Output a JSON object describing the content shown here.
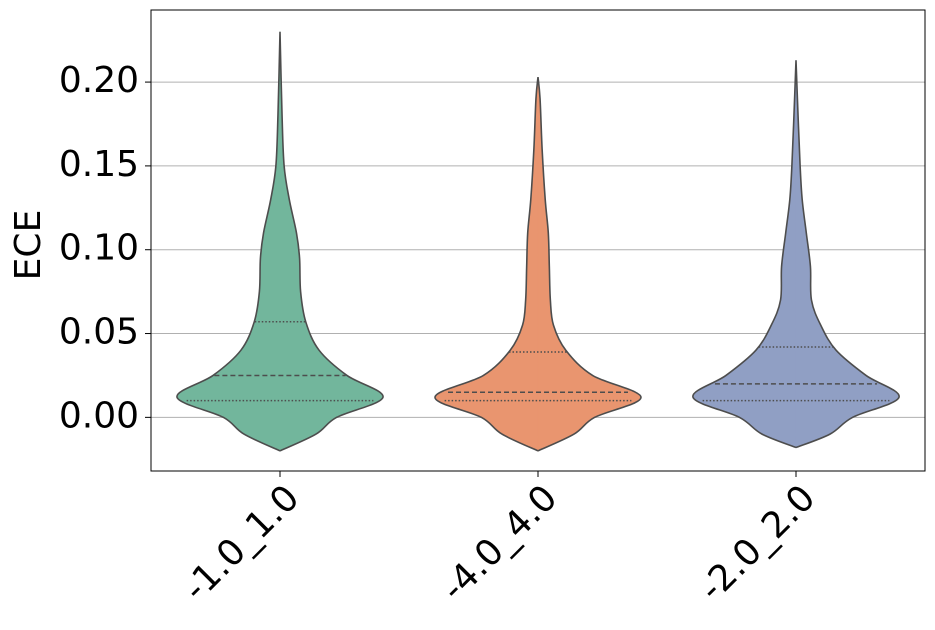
{
  "chart_data": {
    "type": "violin",
    "ylabel": "ECE",
    "categories": [
      "-1.0_1.0",
      "-4.0_4.0",
      "-2.0_2.0"
    ],
    "ylim": [
      -0.032,
      0.243
    ],
    "yticks": [
      {
        "value": 0,
        "label": "0.00"
      },
      {
        "value": 0.05,
        "label": "0.05"
      },
      {
        "value": 0.1,
        "label": "0.10"
      },
      {
        "value": 0.15,
        "label": "0.15"
      },
      {
        "value": 0.2,
        "label": "0.20"
      }
    ],
    "grid": true,
    "violins": [
      {
        "color": "#72b69c",
        "y": [
          -0.02,
          -0.01,
          0,
          0.012,
          0.025,
          0.04,
          0.057,
          0.075,
          0.095,
          0.11,
          0.13,
          0.15,
          0.18,
          0.23
        ],
        "density": [
          0,
          0.35,
          0.55,
          1,
          0.65,
          0.38,
          0.25,
          0.2,
          0.19,
          0.16,
          0.09,
          0.04,
          0.02,
          0
        ],
        "quartiles": [
          0.01,
          0.025,
          0.057
        ]
      },
      {
        "color": "#e9956f",
        "y": [
          -0.02,
          -0.01,
          0,
          0.012,
          0.025,
          0.04,
          0.055,
          0.07,
          0.09,
          0.11,
          0.13,
          0.16,
          0.19,
          0.203
        ],
        "density": [
          0,
          0.35,
          0.55,
          1,
          0.53,
          0.27,
          0.15,
          0.12,
          0.11,
          0.1,
          0.07,
          0.04,
          0.02,
          0
        ],
        "quartiles": [
          0.01,
          0.015,
          0.039
        ]
      },
      {
        "color": "#909fc4",
        "y": [
          -0.018,
          -0.01,
          0,
          0.012,
          0.025,
          0.04,
          0.055,
          0.07,
          0.09,
          0.11,
          0.13,
          0.15,
          0.18,
          0.213
        ],
        "density": [
          0,
          0.33,
          0.55,
          1,
          0.68,
          0.39,
          0.24,
          0.15,
          0.14,
          0.1,
          0.06,
          0.04,
          0.02,
          0
        ],
        "quartiles": [
          0.01,
          0.02,
          0.042
        ]
      }
    ]
  }
}
